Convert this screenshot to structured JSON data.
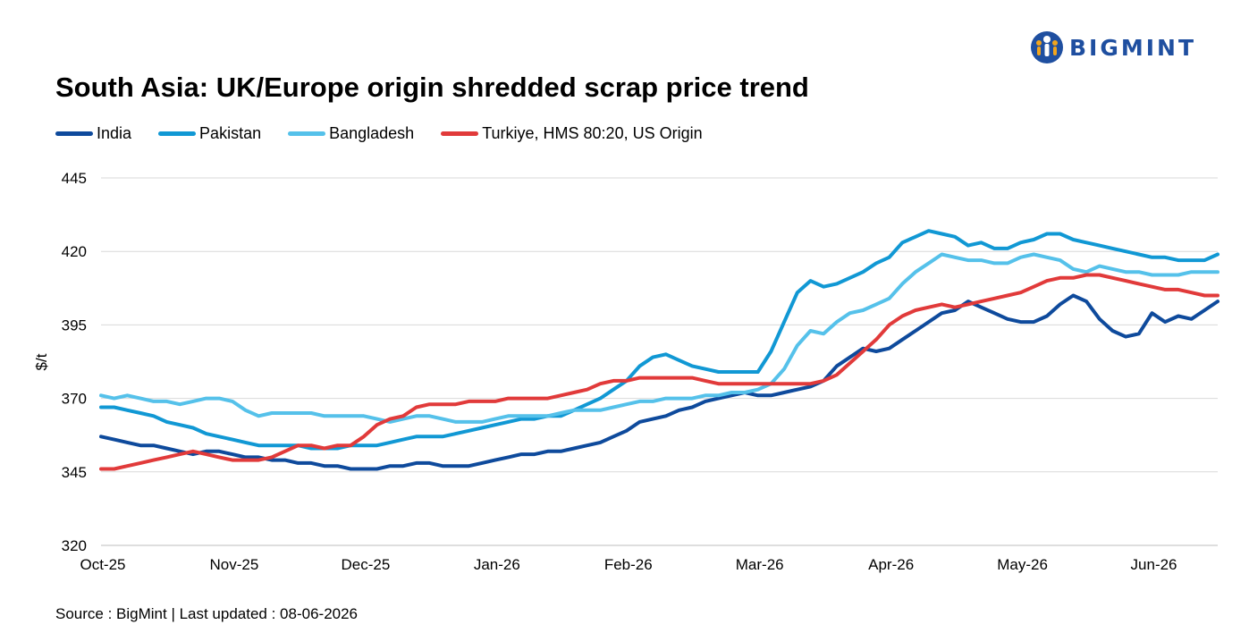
{
  "logo": {
    "text": "BIGMINT",
    "icon": "people-group-icon",
    "color": "#1f4fa0"
  },
  "source": "Source : BigMint | Last updated : 08-06-2026",
  "chart_data": {
    "type": "line",
    "title": "South Asia: UK/Europe origin shredded scrap price trend",
    "ylabel": "$/t",
    "xlabel": "",
    "ylim": [
      320,
      445
    ],
    "yticks": [
      320,
      345,
      370,
      395,
      420,
      445
    ],
    "xticks": [
      "Oct-25",
      "Nov-25",
      "Dec-25",
      "Jan-26",
      "Feb-26",
      "Mar-26",
      "Apr-26",
      "May-26",
      "Jun-26"
    ],
    "xlim": [
      0,
      8.5
    ],
    "grid": "horizontal",
    "legend": "top-left",
    "series": [
      {
        "name": "India",
        "color": "#0e4a9c",
        "x": [
          0,
          0.1,
          0.2,
          0.3,
          0.4,
          0.5,
          0.6,
          0.7,
          0.8,
          0.9,
          1.0,
          1.1,
          1.2,
          1.3,
          1.4,
          1.5,
          1.6,
          1.7,
          1.8,
          1.9,
          2.0,
          2.1,
          2.2,
          2.3,
          2.4,
          2.5,
          2.6,
          2.7,
          2.8,
          2.9,
          3.0,
          3.1,
          3.2,
          3.3,
          3.4,
          3.5,
          3.6,
          3.7,
          3.8,
          3.9,
          4.0,
          4.1,
          4.2,
          4.3,
          4.4,
          4.5,
          4.6,
          4.7,
          4.8,
          4.9,
          5.0,
          5.1,
          5.2,
          5.3,
          5.4,
          5.5,
          5.6,
          5.7,
          5.8,
          5.9,
          6.0,
          6.1,
          6.2,
          6.3,
          6.4,
          6.5,
          6.6,
          6.7,
          6.8,
          6.9,
          7.0,
          7.1,
          7.2,
          7.3,
          7.4,
          7.5,
          7.6,
          7.7,
          7.8,
          7.9,
          8.0,
          8.1,
          8.2,
          8.3,
          8.4,
          8.5
        ],
        "values": [
          357,
          356,
          355,
          354,
          354,
          353,
          352,
          351,
          352,
          352,
          351,
          350,
          350,
          349,
          349,
          348,
          348,
          347,
          347,
          346,
          346,
          346,
          347,
          347,
          348,
          348,
          347,
          347,
          347,
          348,
          349,
          350,
          351,
          351,
          352,
          352,
          353,
          354,
          355,
          357,
          359,
          362,
          363,
          364,
          366,
          367,
          369,
          370,
          371,
          372,
          371,
          371,
          372,
          373,
          374,
          376,
          381,
          384,
          387,
          386,
          387,
          390,
          393,
          396,
          399,
          400,
          403,
          401,
          399,
          397,
          396,
          396,
          398,
          402,
          405,
          403,
          397,
          393,
          391,
          392,
          399,
          396,
          398,
          397,
          400,
          403
        ]
      },
      {
        "name": "Pakistan",
        "color": "#1198d4",
        "x": [
          0,
          0.1,
          0.2,
          0.3,
          0.4,
          0.5,
          0.6,
          0.7,
          0.8,
          0.9,
          1.0,
          1.1,
          1.2,
          1.3,
          1.4,
          1.5,
          1.6,
          1.7,
          1.8,
          1.9,
          2.0,
          2.1,
          2.2,
          2.3,
          2.4,
          2.5,
          2.6,
          2.7,
          2.8,
          2.9,
          3.0,
          3.1,
          3.2,
          3.3,
          3.4,
          3.5,
          3.6,
          3.7,
          3.8,
          3.9,
          4.0,
          4.1,
          4.2,
          4.3,
          4.4,
          4.5,
          4.6,
          4.7,
          4.8,
          4.9,
          5.0,
          5.1,
          5.2,
          5.3,
          5.4,
          5.5,
          5.6,
          5.7,
          5.8,
          5.9,
          6.0,
          6.1,
          6.2,
          6.3,
          6.4,
          6.5,
          6.6,
          6.7,
          6.8,
          6.9,
          7.0,
          7.1,
          7.2,
          7.3,
          7.4,
          7.5,
          7.6,
          7.7,
          7.8,
          7.9,
          8.0,
          8.1,
          8.2,
          8.3,
          8.4,
          8.5
        ],
        "values": [
          367,
          367,
          366,
          365,
          364,
          362,
          361,
          360,
          358,
          357,
          356,
          355,
          354,
          354,
          354,
          354,
          353,
          353,
          353,
          354,
          354,
          354,
          355,
          356,
          357,
          357,
          357,
          358,
          359,
          360,
          361,
          362,
          363,
          363,
          364,
          364,
          366,
          368,
          370,
          373,
          376,
          381,
          384,
          385,
          383,
          381,
          380,
          379,
          379,
          379,
          379,
          386,
          396,
          406,
          410,
          408,
          409,
          411,
          413,
          416,
          418,
          423,
          425,
          427,
          426,
          425,
          422,
          423,
          421,
          421,
          423,
          424,
          426,
          426,
          424,
          423,
          422,
          421,
          420,
          419,
          418,
          418,
          417,
          417,
          417,
          419
        ]
      },
      {
        "name": "Bangladesh",
        "color": "#55c1ea",
        "x": [
          0,
          0.1,
          0.2,
          0.3,
          0.4,
          0.5,
          0.6,
          0.7,
          0.8,
          0.9,
          1.0,
          1.1,
          1.2,
          1.3,
          1.4,
          1.5,
          1.6,
          1.7,
          1.8,
          1.9,
          2.0,
          2.1,
          2.2,
          2.3,
          2.4,
          2.5,
          2.6,
          2.7,
          2.8,
          2.9,
          3.0,
          3.1,
          3.2,
          3.3,
          3.4,
          3.5,
          3.6,
          3.7,
          3.8,
          3.9,
          4.0,
          4.1,
          4.2,
          4.3,
          4.4,
          4.5,
          4.6,
          4.7,
          4.8,
          4.9,
          5.0,
          5.1,
          5.2,
          5.3,
          5.4,
          5.5,
          5.6,
          5.7,
          5.8,
          5.9,
          6.0,
          6.1,
          6.2,
          6.3,
          6.4,
          6.5,
          6.6,
          6.7,
          6.8,
          6.9,
          7.0,
          7.1,
          7.2,
          7.3,
          7.4,
          7.5,
          7.6,
          7.7,
          7.8,
          7.9,
          8.0,
          8.1,
          8.2,
          8.3,
          8.4,
          8.5
        ],
        "values": [
          371,
          370,
          371,
          370,
          369,
          369,
          368,
          369,
          370,
          370,
          369,
          366,
          364,
          365,
          365,
          365,
          365,
          364,
          364,
          364,
          364,
          363,
          362,
          363,
          364,
          364,
          363,
          362,
          362,
          362,
          363,
          364,
          364,
          364,
          364,
          365,
          366,
          366,
          366,
          367,
          368,
          369,
          369,
          370,
          370,
          370,
          371,
          371,
          372,
          372,
          373,
          375,
          380,
          388,
          393,
          392,
          396,
          399,
          400,
          402,
          404,
          409,
          413,
          416,
          419,
          418,
          417,
          417,
          416,
          416,
          418,
          419,
          418,
          417,
          414,
          413,
          415,
          414,
          413,
          413,
          412,
          412,
          412,
          413,
          413,
          413
        ]
      },
      {
        "name": "Turkiye, HMS 80:20, US Origin",
        "color": "#e13a3a",
        "x": [
          0,
          0.1,
          0.2,
          0.3,
          0.4,
          0.5,
          0.6,
          0.7,
          0.8,
          0.9,
          1.0,
          1.1,
          1.2,
          1.3,
          1.4,
          1.5,
          1.6,
          1.7,
          1.8,
          1.9,
          2.0,
          2.1,
          2.2,
          2.3,
          2.4,
          2.5,
          2.6,
          2.7,
          2.8,
          2.9,
          3.0,
          3.1,
          3.2,
          3.3,
          3.4,
          3.5,
          3.6,
          3.7,
          3.8,
          3.9,
          4.0,
          4.1,
          4.2,
          4.3,
          4.4,
          4.5,
          4.6,
          4.7,
          4.8,
          4.9,
          5.0,
          5.1,
          5.2,
          5.3,
          5.4,
          5.5,
          5.6,
          5.7,
          5.8,
          5.9,
          6.0,
          6.1,
          6.2,
          6.3,
          6.4,
          6.5,
          6.6,
          6.7,
          6.8,
          6.9,
          7.0,
          7.1,
          7.2,
          7.3,
          7.4,
          7.5,
          7.6,
          7.7,
          7.8,
          7.9,
          8.0,
          8.1,
          8.2,
          8.3,
          8.4,
          8.5
        ],
        "values": [
          346,
          346,
          347,
          348,
          349,
          350,
          351,
          352,
          351,
          350,
          349,
          349,
          349,
          350,
          352,
          354,
          354,
          353,
          354,
          354,
          357,
          361,
          363,
          364,
          367,
          368,
          368,
          368,
          369,
          369,
          369,
          370,
          370,
          370,
          370,
          371,
          372,
          373,
          375,
          376,
          376,
          377,
          377,
          377,
          377,
          377,
          376,
          375,
          375,
          375,
          375,
          375,
          375,
          375,
          375,
          376,
          378,
          382,
          386,
          390,
          395,
          398,
          400,
          401,
          402,
          401,
          402,
          403,
          404,
          405,
          406,
          408,
          410,
          411,
          411,
          412,
          412,
          411,
          410,
          409,
          408,
          407,
          407,
          406,
          405,
          405
        ]
      }
    ]
  }
}
